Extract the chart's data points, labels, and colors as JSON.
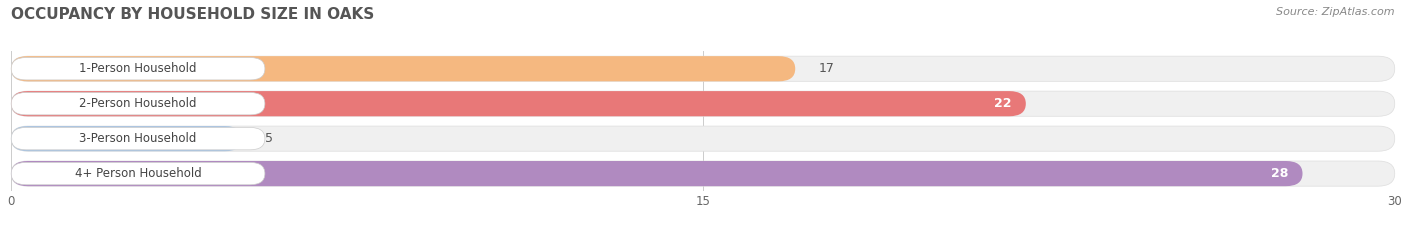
{
  "title": "OCCUPANCY BY HOUSEHOLD SIZE IN OAKS",
  "source": "Source: ZipAtlas.com",
  "categories": [
    "1-Person Household",
    "2-Person Household",
    "3-Person Household",
    "4+ Person Household"
  ],
  "values": [
    17,
    22,
    5,
    28
  ],
  "bar_colors": [
    "#f5b880",
    "#e87878",
    "#aac4e0",
    "#b08ac0"
  ],
  "xlim": [
    0,
    30
  ],
  "xticks": [
    0,
    15,
    30
  ],
  "title_fontsize": 11,
  "source_fontsize": 8,
  "label_fontsize": 8.5,
  "value_fontsize": 9,
  "background_color": "#ffffff",
  "bar_bg_color": "#f0f0f0",
  "label_bg_color": "#ffffff"
}
